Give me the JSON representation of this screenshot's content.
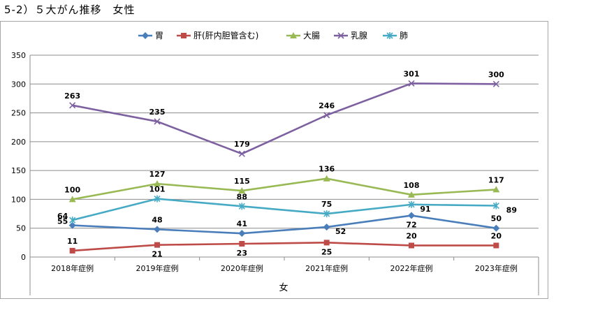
{
  "page": {
    "title": "5-2）５大がん推移　女性"
  },
  "chart_data": {
    "type": "line",
    "title": "",
    "xlabel": "女",
    "ylabel": "",
    "categories": [
      "2018年症例",
      "2019年症例",
      "2020年症例",
      "2021年症例",
      "2022年症例",
      "2023年症例"
    ],
    "ylim": [
      0,
      350
    ],
    "yticks": [
      0,
      50,
      100,
      150,
      200,
      250,
      300,
      350
    ],
    "grid": true,
    "legend_position": "top",
    "series": [
      {
        "name": "胃",
        "color": "#4a7ebb",
        "marker": "diamond",
        "values": [
          55,
          48,
          41,
          52,
          72,
          50
        ]
      },
      {
        "name": "肝(肝内胆管含む)",
        "color": "#be4b48",
        "marker": "square",
        "values": [
          11,
          21,
          23,
          25,
          20,
          20
        ]
      },
      {
        "name": "大腸",
        "color": "#98b954",
        "marker": "triangle",
        "values": [
          100,
          127,
          115,
          136,
          108,
          117
        ]
      },
      {
        "name": "乳腺",
        "color": "#7d60a0",
        "marker": "x",
        "values": [
          263,
          235,
          179,
          246,
          301,
          300
        ]
      },
      {
        "name": "肺",
        "color": "#46aac5",
        "marker": "star",
        "values": [
          64,
          101,
          88,
          75,
          91,
          89
        ]
      }
    ]
  }
}
